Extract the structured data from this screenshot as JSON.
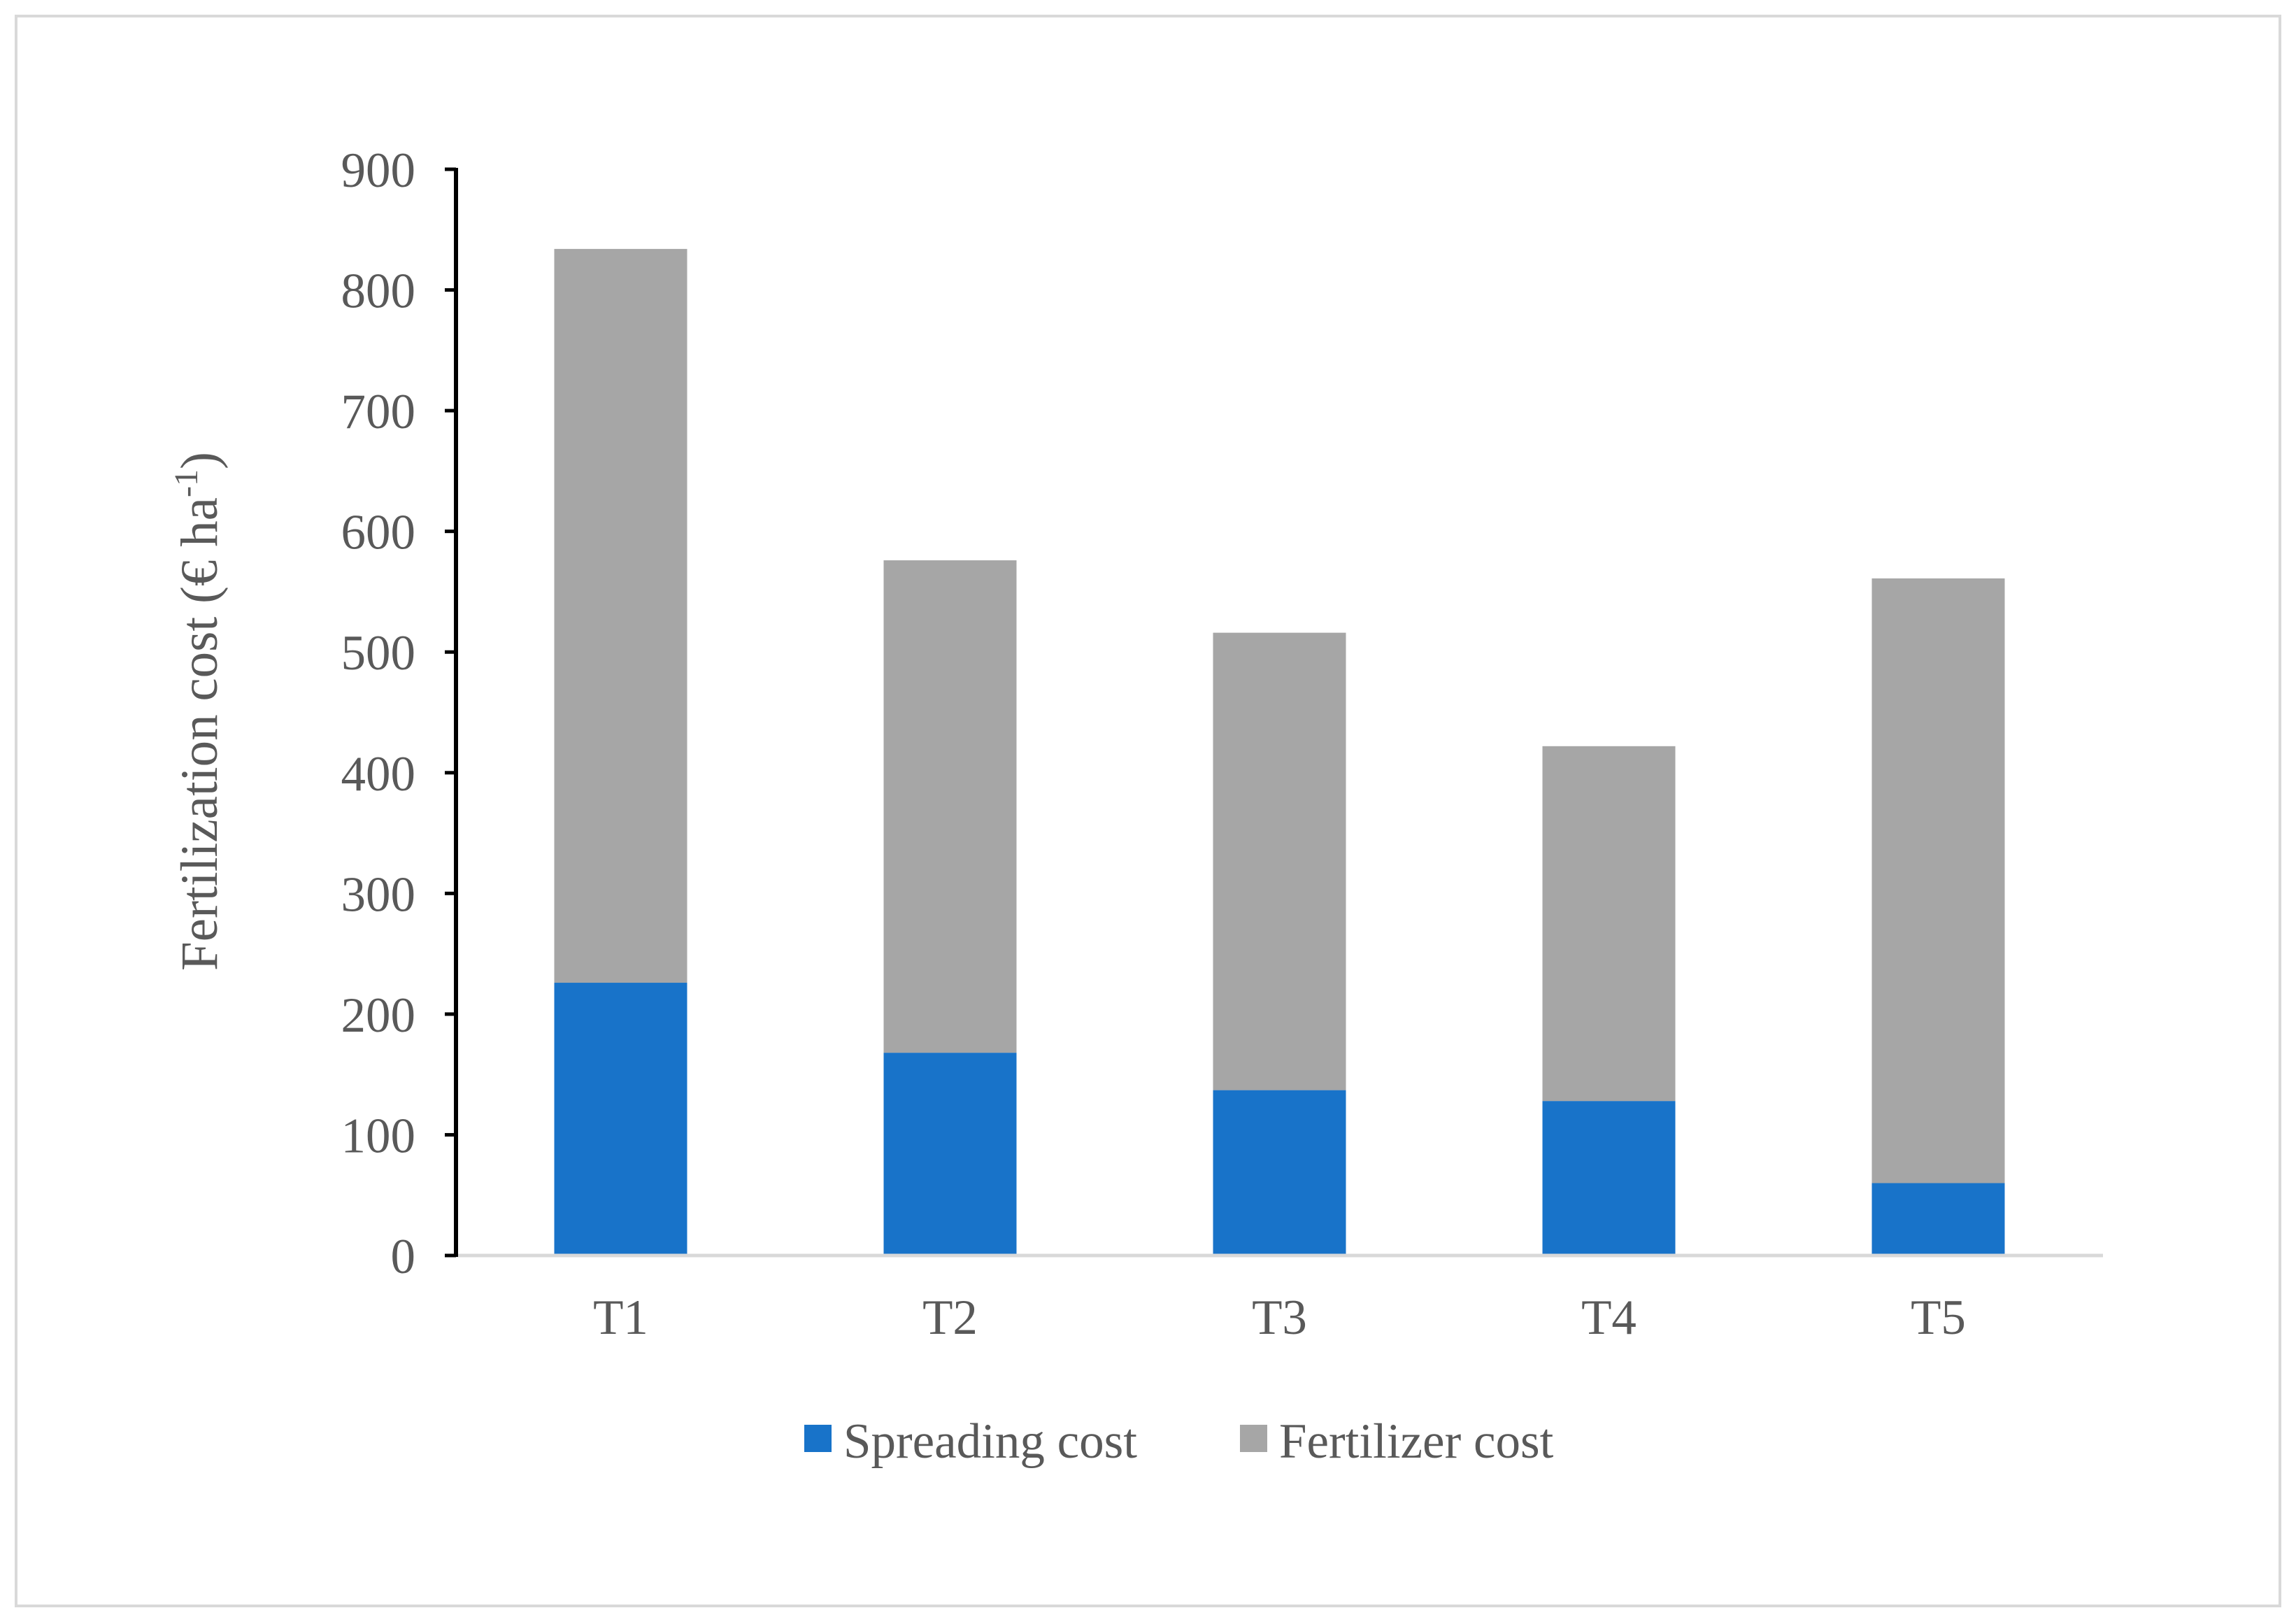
{
  "chart_data": {
    "type": "bar",
    "stacked": true,
    "categories": [
      "T1",
      "T2",
      "T3",
      "T4",
      "T5"
    ],
    "series": [
      {
        "name": "Spreading cost",
        "color": "#1873c9",
        "values": [
          226,
          168,
          137,
          128,
          60
        ]
      },
      {
        "name": "Fertilizer cost",
        "color": "#a6a6a6",
        "values": [
          608,
          408,
          379,
          294,
          501
        ]
      }
    ],
    "title": "",
    "xlabel": "",
    "ylabel": "Fertilization cost (€ ha",
    "ylabel_superscript": "-1",
    "ylabel_suffix": ")",
    "ylim": [
      0,
      900
    ],
    "yticks": [
      0,
      100,
      200,
      300,
      400,
      500,
      600,
      700,
      800,
      900
    ],
    "grid": false,
    "legend_position": "bottom"
  },
  "colors": {
    "axis_text": "#595959",
    "y_axis_line": "#000000",
    "x_axis_line": "#d9d9d9"
  }
}
